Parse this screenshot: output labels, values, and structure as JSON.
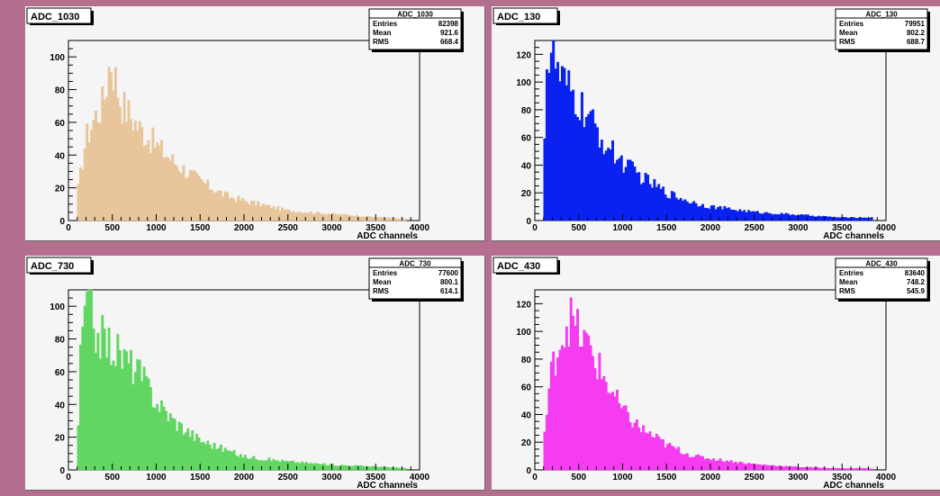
{
  "style": {
    "background": "#b36f8d",
    "pad_bg": "#f5f5f5"
  },
  "charts": [
    {
      "id": "p0",
      "title": "ADC_1030",
      "color": "#e8c59a",
      "stats": {
        "name": "ADC_1030",
        "entries": "82398",
        "mean": "921.6",
        "rms": "668.4"
      }
    },
    {
      "id": "p1",
      "title": "ADC_130",
      "color": "#0a22f0",
      "stats": {
        "name": "ADC_130",
        "entries": "79951",
        "mean": "802.2",
        "rms": "688.7"
      }
    },
    {
      "id": "p2",
      "title": "ADC_730",
      "color": "#62d662",
      "stats": {
        "name": "ADC_730",
        "entries": "77600",
        "mean": "800.1",
        "rms": "614.1"
      }
    },
    {
      "id": "p3",
      "title": "ADC_430",
      "color": "#f53cf0",
      "stats": {
        "name": "ADC_430",
        "entries": "83640",
        "mean": "748.2",
        "rms": "545.9"
      }
    }
  ],
  "chart_data": [
    {
      "type": "bar",
      "title": "ADC_1030",
      "xlabel": "ADC channels",
      "ylabel": "",
      "xlim": [
        0,
        4000
      ],
      "ylim": [
        0,
        110
      ],
      "xticks": [
        0,
        500,
        1000,
        1500,
        2000,
        2500,
        3000,
        3500,
        4000
      ],
      "yticks": [
        0,
        20,
        40,
        60,
        80,
        100
      ],
      "bin_width": 25,
      "x": [
        100,
        200,
        300,
        400,
        480,
        600,
        800,
        1000,
        1200,
        1500,
        1800,
        2000,
        2500,
        3000,
        3500,
        3800
      ],
      "values": [
        15,
        50,
        63,
        72,
        100,
        72,
        57,
        46,
        36,
        24,
        15,
        12,
        6,
        4,
        2,
        1
      ]
    },
    {
      "type": "bar",
      "title": "ADC_130",
      "xlabel": "ADC channels",
      "ylabel": "",
      "xlim": [
        0,
        4000
      ],
      "ylim": [
        0,
        130
      ],
      "xticks": [
        0,
        500,
        1000,
        1500,
        2000,
        2500,
        3000,
        3500,
        4000
      ],
      "yticks": [
        0,
        20,
        40,
        60,
        80,
        100,
        120
      ],
      "bin_width": 25,
      "x": [
        100,
        120,
        200,
        300,
        400,
        600,
        800,
        1000,
        1200,
        1500,
        1800,
        2000,
        2500,
        3000,
        3500,
        3800
      ],
      "values": [
        0,
        110,
        120,
        100,
        92,
        75,
        55,
        42,
        32,
        20,
        13,
        10,
        6,
        4,
        2,
        2
      ]
    },
    {
      "type": "bar",
      "title": "ADC_730",
      "xlabel": "ADC channels",
      "ylabel": "",
      "xlim": [
        0,
        4000
      ],
      "ylim": [
        0,
        110
      ],
      "xticks": [
        0,
        500,
        1000,
        1500,
        2000,
        2500,
        3000,
        3500,
        4000
      ],
      "yticks": [
        0,
        20,
        40,
        60,
        80,
        100
      ],
      "bin_width": 25,
      "x": [
        100,
        150,
        250,
        300,
        400,
        600,
        800,
        1000,
        1200,
        1500,
        1800,
        2000,
        2500,
        3000,
        3500,
        3800
      ],
      "values": [
        10,
        85,
        105,
        85,
        80,
        70,
        60,
        42,
        30,
        18,
        12,
        8,
        5,
        3,
        2,
        1
      ]
    },
    {
      "type": "bar",
      "title": "ADC_430",
      "xlabel": "ADC channels",
      "ylabel": "",
      "xlim": [
        0,
        4000
      ],
      "ylim": [
        0,
        130
      ],
      "xticks": [
        0,
        500,
        1000,
        1500,
        2000,
        2500,
        3000,
        3500,
        4000
      ],
      "yticks": [
        0,
        20,
        40,
        60,
        80,
        100,
        120
      ],
      "bin_width": 25,
      "x": [
        100,
        200,
        300,
        400,
        500,
        600,
        800,
        1000,
        1200,
        1500,
        1800,
        2000,
        2500,
        3000,
        3500,
        3800
      ],
      "values": [
        20,
        75,
        95,
        110,
        98,
        90,
        65,
        42,
        30,
        18,
        10,
        8,
        4,
        2,
        1,
        1
      ]
    }
  ]
}
